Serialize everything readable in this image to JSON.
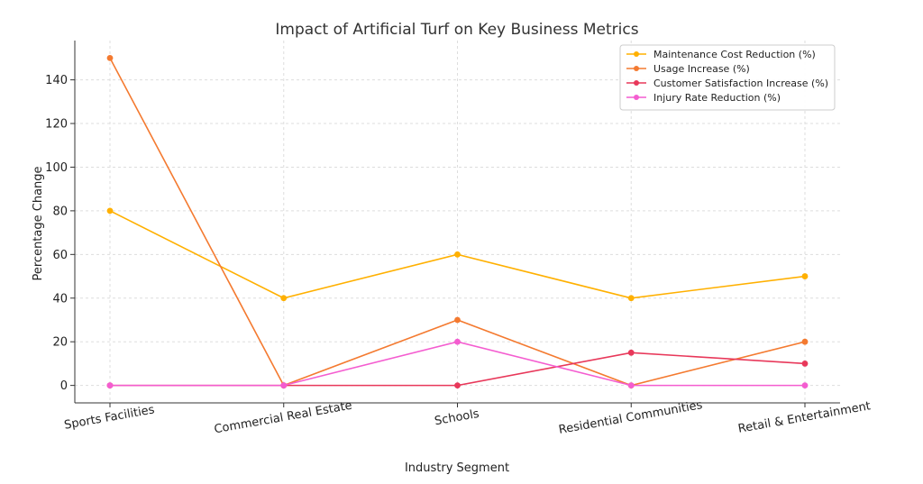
{
  "chart_data": {
    "type": "line",
    "title": "Impact of Artificial Turf on Key Business Metrics",
    "xlabel": "Industry Segment",
    "ylabel": "Percentage Change",
    "categories": [
      "Sports Facilities",
      "Commercial Real Estate",
      "Schools",
      "Residential Communities",
      "Retail & Entertainment"
    ],
    "y_ticks": [
      0,
      20,
      40,
      60,
      80,
      100,
      120,
      140
    ],
    "ylim": [
      -8,
      158
    ],
    "grid": true,
    "legend_position": "top-right",
    "series": [
      {
        "name": "Maintenance Cost Reduction (%)",
        "color": "#FFB000",
        "values": [
          80,
          40,
          60,
          40,
          50
        ]
      },
      {
        "name": "Usage Increase (%)",
        "color": "#F47A30",
        "values": [
          150,
          0,
          30,
          0,
          20
        ]
      },
      {
        "name": "Customer Satisfaction Increase (%)",
        "color": "#E8385A",
        "values": [
          0,
          0,
          0,
          15,
          10
        ]
      },
      {
        "name": "Injury Rate Reduction (%)",
        "color": "#F45DD0",
        "values": [
          0,
          0,
          20,
          0,
          0
        ]
      }
    ]
  }
}
